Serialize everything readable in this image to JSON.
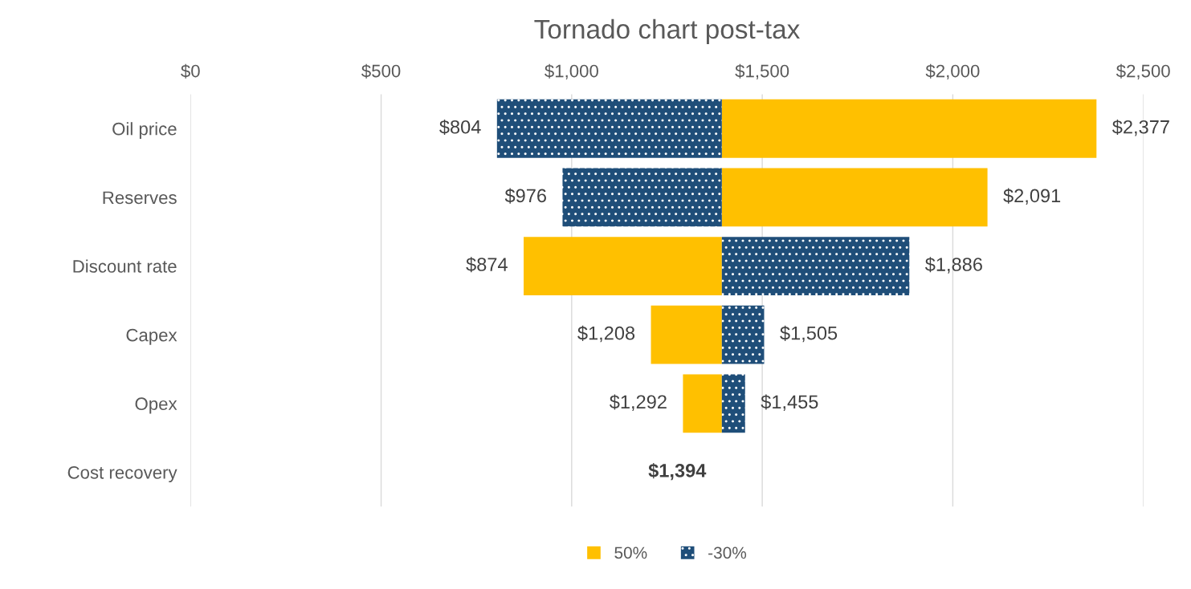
{
  "chart_data": {
    "type": "bar",
    "orientation": "horizontal",
    "title": "Tornado chart post-tax",
    "categories": [
      "Oil price",
      "Reserves",
      "Discount rate",
      "Capex",
      "Opex",
      "Cost recovery"
    ],
    "series": [
      {
        "name": "50%",
        "color": "#ffc000",
        "base": [
          1394,
          1394,
          1394,
          1394,
          1394,
          null
        ],
        "values": [
          983,
          697,
          -520,
          -186,
          -102,
          null
        ],
        "value_labels": [
          "$2,377",
          "$2,091",
          "$874",
          "$1,208",
          "$1,292",
          null
        ]
      },
      {
        "name": "-30%",
        "color": "#1f4e79",
        "base": [
          1394,
          1394,
          1394,
          1394,
          1394,
          null
        ],
        "values": [
          -590,
          -418,
          492,
          111,
          61,
          null
        ],
        "value_labels": [
          "$804",
          "$976",
          "$1,886",
          "$1,505",
          "$1,455",
          null
        ]
      }
    ],
    "annotations": [
      "$1,394"
    ],
    "xlim": [
      0,
      2500
    ],
    "xticks": [
      {
        "value": 0,
        "label": "$0"
      },
      {
        "value": 500,
        "label": "$500"
      },
      {
        "value": 1000,
        "label": "$1,000"
      },
      {
        "value": 1500,
        "label": "$1,500"
      },
      {
        "value": 2000,
        "label": "$2,000"
      },
      {
        "value": 2500,
        "label": "$2,500"
      }
    ],
    "grid": "x",
    "legend": "bottom"
  }
}
